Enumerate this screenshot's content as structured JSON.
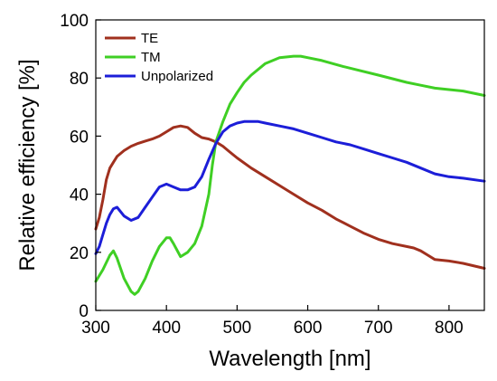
{
  "chart_data": {
    "type": "line",
    "title": "",
    "xlabel": "Wavelength [nm]",
    "ylabel": "Relative efficiency [%]",
    "xlim": [
      300,
      850
    ],
    "ylim": [
      0,
      100
    ],
    "xticks": [
      300,
      400,
      500,
      600,
      700,
      800
    ],
    "yticks": [
      0,
      20,
      40,
      60,
      80,
      100
    ],
    "grid": false,
    "legend_position": "top-left",
    "series": [
      {
        "name": "TE",
        "color": "#a0301e",
        "x": [
          300,
          305,
          310,
          315,
          320,
          325,
          330,
          340,
          350,
          360,
          370,
          380,
          390,
          400,
          410,
          420,
          430,
          440,
          450,
          460,
          470,
          480,
          490,
          500,
          520,
          540,
          560,
          580,
          600,
          620,
          640,
          660,
          680,
          700,
          720,
          740,
          750,
          760,
          770,
          780,
          800,
          820,
          850
        ],
        "y": [
          28,
          32,
          38,
          45,
          49,
          51,
          53,
          55,
          56.5,
          57.5,
          58.3,
          59,
          60,
          61.5,
          63,
          63.5,
          63,
          61,
          59.5,
          59,
          58,
          56.5,
          54.5,
          52.5,
          49,
          46,
          43,
          40,
          37,
          34.5,
          31.5,
          29,
          26.5,
          24.5,
          23,
          22,
          21.5,
          20.5,
          19,
          17.5,
          17,
          16.2,
          14.5
        ]
      },
      {
        "name": "TM",
        "color": "#3fcf24",
        "x": [
          300,
          310,
          320,
          325,
          330,
          340,
          350,
          355,
          360,
          370,
          380,
          390,
          400,
          405,
          410,
          420,
          430,
          440,
          450,
          460,
          465,
          470,
          480,
          490,
          500,
          510,
          520,
          540,
          560,
          580,
          590,
          600,
          620,
          650,
          700,
          740,
          760,
          780,
          800,
          820,
          850
        ],
        "y": [
          10,
          14,
          19,
          20.5,
          18,
          11,
          6.5,
          5.5,
          6.5,
          11,
          17,
          22,
          25,
          25,
          23,
          18.5,
          20,
          23,
          29,
          40,
          50,
          58,
          65,
          71,
          75,
          78.5,
          81,
          85,
          87,
          87.5,
          87.5,
          87,
          86,
          84,
          81,
          78.5,
          77.5,
          76.5,
          76,
          75.5,
          74
        ]
      },
      {
        "name": "Unpolarized",
        "color": "#1c1ed8",
        "x": [
          300,
          305,
          310,
          315,
          320,
          325,
          330,
          340,
          350,
          360,
          370,
          380,
          390,
          400,
          410,
          420,
          430,
          440,
          450,
          460,
          470,
          480,
          490,
          500,
          510,
          520,
          530,
          540,
          560,
          580,
          600,
          620,
          640,
          660,
          680,
          700,
          720,
          740,
          760,
          780,
          800,
          820,
          850
        ],
        "y": [
          19.5,
          22,
          26,
          30,
          33,
          35,
          35.5,
          32.5,
          31,
          32,
          35.5,
          39,
          42.5,
          43.5,
          42.5,
          41.5,
          41.5,
          42.5,
          46,
          52,
          57.5,
          61.5,
          63.5,
          64.5,
          65,
          65,
          65,
          64.5,
          63.5,
          62.5,
          61,
          59.5,
          58,
          57,
          55.5,
          54,
          52.5,
          51,
          49,
          47,
          46,
          45.5,
          44.5
        ]
      }
    ]
  }
}
